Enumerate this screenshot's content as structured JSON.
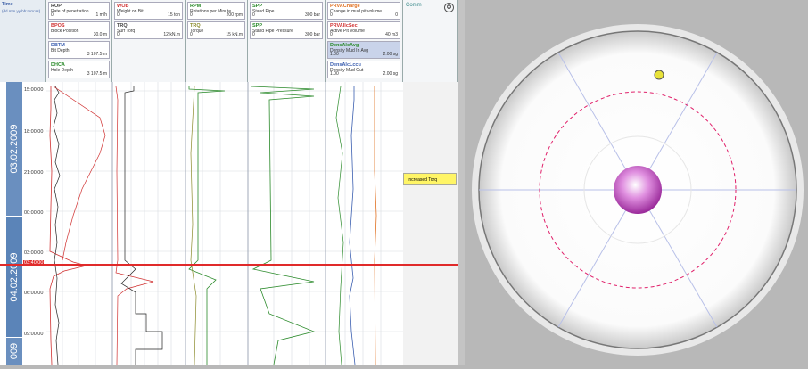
{
  "time_col": {
    "title": "Time",
    "subtitle": "(dd.mm.yy hh:mm:ss)"
  },
  "dates": [
    "03.02.2009",
    "04.02.2009",
    "009"
  ],
  "ticks": [
    "15:00:00",
    "18:00:00",
    "21:00:00",
    "00:00:00",
    "03:00:00",
    "06:00:00",
    "09:00:00"
  ],
  "marker_time": "03:40:00",
  "tooltip_text": "Increased Torq",
  "columns": [
    {
      "boxes": [
        {
          "title": "ROP",
          "sub": "Rate of penetration",
          "left": "0",
          "right": "1 m/h"
        },
        {
          "title": "BPOS",
          "sub": "Block Position",
          "left": "",
          "right": "30.0 m"
        },
        {
          "title": "DBTM",
          "sub": "Bit Depth",
          "left": "",
          "right": "3 107.5 m"
        },
        {
          "title": "DHCA",
          "sub": "Hole Depth",
          "left": "",
          "right": "3 107.5 m"
        }
      ],
      "color": "#444"
    },
    {
      "boxes": [
        {
          "title": "WOB",
          "sub": "Weight on Bit",
          "left": "0",
          "right": "15 ton"
        },
        {
          "title": "TRQ",
          "sub": "Surf Torq",
          "left": "0",
          "right": "12 kN.m"
        }
      ],
      "color": "#d03030"
    },
    {
      "boxes": [
        {
          "title": "RPM",
          "sub": "Rotations per Minute",
          "left": "0",
          "right": "200 rpm"
        },
        {
          "title": "TRQ",
          "sub": "Torque",
          "left": "0",
          "right": "15 kN.m"
        }
      ],
      "color": "#2a8a2a"
    },
    {
      "boxes": [
        {
          "title": "SPP",
          "sub": "Stand Pipe",
          "left": "0",
          "right": "300 bar"
        },
        {
          "title": "SPP",
          "sub": "Stand Pipe Pressure",
          "left": "0",
          "right": "300 bar"
        }
      ],
      "color": "#2a8a2a"
    },
    {
      "boxes": [
        {
          "title": "PRVACharge",
          "sub": "Change in mud pit volume",
          "left": "0",
          "right": "0"
        },
        {
          "title": "PRVAllcSec",
          "sub": "Active Pit Volume",
          "left": "0",
          "right": "40 m3"
        },
        {
          "title": "DensAlcAvg",
          "sub": "Density Mud In Avg",
          "left": "1.00",
          "right": "2.00 sg"
        },
        {
          "title": "DensAlcLccu",
          "sub": "Density Mud Out",
          "left": "1.00",
          "right": "2.00 sg"
        }
      ],
      "color": "#6a6ad0"
    }
  ],
  "extra_col": {
    "title": "Comm",
    "icon": "gear-icon"
  },
  "bullseye": {
    "colors": {
      "ring": "#e0206a",
      "ball": "#b53bb5",
      "dot": "#e8e23a",
      "spoke": "#9aa8e0"
    },
    "dot_label": ""
  }
}
